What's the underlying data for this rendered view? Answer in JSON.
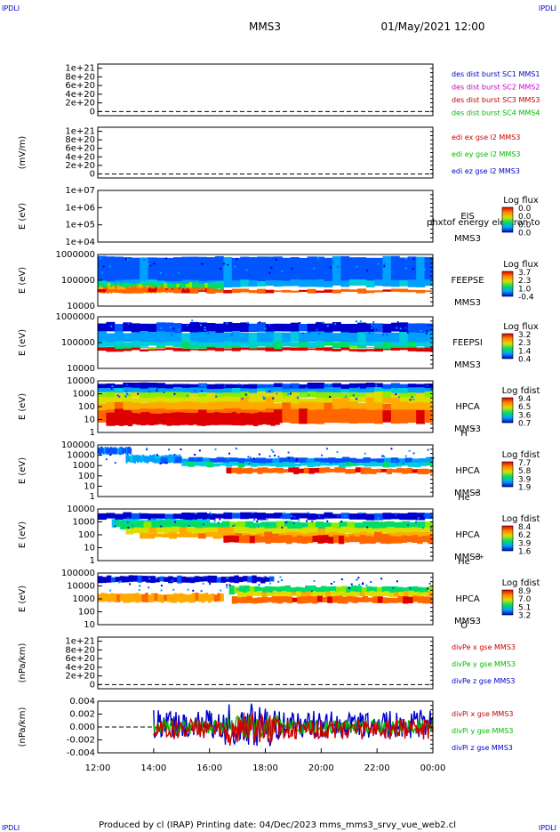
{
  "corners": {
    "text": "IPDLI"
  },
  "header": {
    "spacecraft": "MMS3",
    "datetime": "01/May/2021 12:00"
  },
  "footer": {
    "text": "Produced by cl (IRAP)   Printing date: 04/Dec/2023   mms_mms3_srvy_vue_web2.cl"
  },
  "chart_data": [
    {
      "type": "line",
      "panel": "des-dist-burst",
      "ylabel": "",
      "yticks": [
        "1e+21",
        "8e+20",
        "6e+20",
        "4e+20",
        "2e+20",
        "0"
      ],
      "series": [
        {
          "name": "des dist burst SC1 MMS1",
          "color": "#0000cc"
        },
        {
          "name": "des dist burst SC2 MMS2",
          "color": "#cc00cc"
        },
        {
          "name": "des dist burst SC3 MMS3",
          "color": "#cc0000"
        },
        {
          "name": "des dist burst SC4 MMS4",
          "color": "#00bb00"
        }
      ]
    },
    {
      "type": "line",
      "panel": "edi-e-gse",
      "ylabel": "(mV/m)",
      "yticks": [
        "1e+21",
        "8e+20",
        "6e+20",
        "4e+20",
        "2e+20",
        "0"
      ],
      "series": [
        {
          "name": "edi ex gse l2 MMS3",
          "color": "#cc0000"
        },
        {
          "name": "edi ey gse l2 MMS3",
          "color": "#00bb00"
        },
        {
          "name": "edi ez gse l2 MMS3",
          "color": "#0000cc"
        }
      ]
    },
    {
      "type": "heatmap",
      "panel": "eis",
      "ylabel": "E (eV)",
      "yticks": [
        "1e+07",
        "1e+06",
        "1e+05",
        "1e+04"
      ],
      "instrument": [
        "EIS",
        "MMS3"
      ],
      "overlay": "phxtof  energy electron to",
      "colorbar": {
        "title": "Log flux",
        "ticks": [
          "0.0",
          "0.0",
          "0.0",
          "0.0"
        ]
      },
      "empty": true
    },
    {
      "type": "heatmap",
      "panel": "feepse",
      "ylabel": "E (eV)",
      "yticks": [
        "1000000",
        "100000",
        "10000"
      ],
      "instrument": [
        "FEEPSE",
        "MMS3"
      ],
      "colorbar": {
        "title": "Log flux",
        "ticks": [
          "3.7",
          "2.3",
          "1.0",
          "-0.4"
        ]
      }
    },
    {
      "type": "heatmap",
      "panel": "feepsi",
      "ylabel": "E (eV)",
      "yticks": [
        "1000000",
        "100000",
        "10000"
      ],
      "instrument": [
        "FEEPSI",
        "MMS3"
      ],
      "colorbar": {
        "title": "Log flux",
        "ticks": [
          "3.2",
          "2.3",
          "1.4",
          "0.4"
        ]
      }
    },
    {
      "type": "heatmap",
      "panel": "hpca-h",
      "ylabel": "E (eV)",
      "yticks": [
        "10000",
        "1000",
        "100",
        "10",
        "1"
      ],
      "instrument": [
        "HPCA",
        "MMS3",
        "H",
        "+"
      ],
      "colorbar": {
        "title": "Log fdist",
        "ticks": [
          "9.4",
          "6.5",
          "3.6",
          "0.7"
        ]
      }
    },
    {
      "type": "heatmap",
      "panel": "hpca-he",
      "ylabel": "E (eV)",
      "yticks": [
        "100000",
        "10000",
        "1000",
        "100",
        "10",
        "1"
      ],
      "instrument": [
        "HPCA",
        "MMS3",
        "He",
        "+"
      ],
      "colorbar": {
        "title": "Log fdist",
        "ticks": [
          "7.7",
          "5.8",
          "3.9",
          "1.9"
        ]
      }
    },
    {
      "type": "heatmap",
      "panel": "hpca-he2",
      "ylabel": "E (eV)",
      "yticks": [
        "10000",
        "1000",
        "100",
        "10",
        "1"
      ],
      "instrument": [
        "HPCA",
        "MMS3",
        "He",
        "++"
      ],
      "colorbar": {
        "title": "Log fdist",
        "ticks": [
          "8.4",
          "6.2",
          "3.9",
          "1.6"
        ]
      }
    },
    {
      "type": "heatmap",
      "panel": "hpca-o",
      "ylabel": "E (eV)",
      "yticks": [
        "100000",
        "10000",
        "1000",
        "100",
        "10"
      ],
      "instrument": [
        "HPCA",
        "MMS3",
        "O",
        "+"
      ],
      "colorbar": {
        "title": "Log fdist",
        "ticks": [
          "8.9",
          "7.0",
          "5.1",
          "3.2"
        ]
      }
    },
    {
      "type": "line",
      "panel": "divpe",
      "ylabel": "(nPa/km)",
      "yticks": [
        "1e+21",
        "8e+20",
        "6e+20",
        "4e+20",
        "2e+20",
        "0"
      ],
      "series": [
        {
          "name": "divPe x gse MMS3",
          "color": "#cc0000"
        },
        {
          "name": "divPe y gse MMS3",
          "color": "#00bb00"
        },
        {
          "name": "divPe z gse MMS3",
          "color": "#0000cc"
        }
      ]
    },
    {
      "type": "line",
      "panel": "divpi",
      "ylabel": "(nPa/km)",
      "yticks": [
        "0.004",
        "0.002",
        "0.000",
        "-0.002",
        "-0.004"
      ],
      "series": [
        {
          "name": "divPi x gse MMS3",
          "color": "#cc0000"
        },
        {
          "name": "divPi y gse MMS3",
          "color": "#00bb00"
        },
        {
          "name": "divPi z gse MMS3",
          "color": "#0000cc"
        }
      ]
    }
  ],
  "xaxis": {
    "ticks": [
      "12:00",
      "14:00",
      "16:00",
      "18:00",
      "20:00",
      "22:00",
      "00:00"
    ]
  }
}
